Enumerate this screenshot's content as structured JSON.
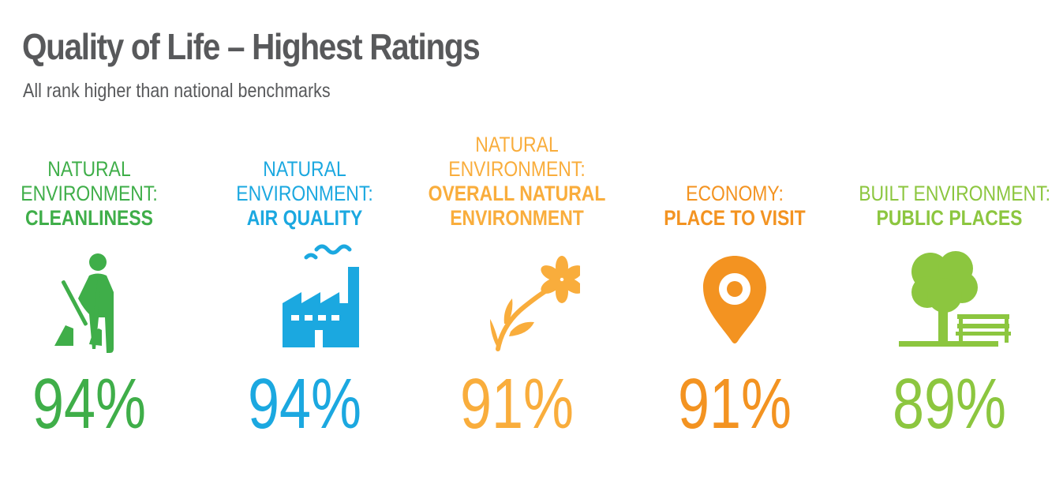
{
  "header": {
    "title": "Quality of Life – Highest Ratings",
    "subtitle": "All rank higher than national benchmarks"
  },
  "chart_data": {
    "type": "table",
    "title": "Quality of Life – Highest Ratings",
    "subtitle": "All rank higher than national benchmarks",
    "unit": "%",
    "items": [
      {
        "category_lines": [
          "NATURAL",
          "ENVIRONMENT:"
        ],
        "metric": "CLEANLINESS",
        "value": 94,
        "label": "94%",
        "color": "#3fae49",
        "icon": "sweeping-person-icon"
      },
      {
        "category_lines": [
          "NATURAL",
          "ENVIRONMENT:"
        ],
        "metric": "AIR QUALITY",
        "value": 94,
        "label": "94%",
        "color": "#1ba8e0",
        "icon": "factory-icon"
      },
      {
        "category_lines": [
          "NATURAL",
          "ENVIRONMENT:"
        ],
        "metric": "OVERALL NATURAL ENVIRONMENT",
        "metric_lines": [
          "OVERALL NATURAL",
          "ENVIRONMENT"
        ],
        "value": 91,
        "label": "91%",
        "color": "#f9ad3c",
        "icon": "flower-icon"
      },
      {
        "category_lines": [
          "ECONOMY:"
        ],
        "metric": "PLACE TO VISIT",
        "value": 91,
        "label": "91%",
        "color": "#f39321",
        "icon": "map-pin-icon"
      },
      {
        "category_lines": [
          "BUILT ENVIRONMENT:"
        ],
        "metric": "PUBLIC PLACES",
        "value": 89,
        "label": "89%",
        "color": "#8cc63f",
        "icon": "tree-bench-icon"
      }
    ]
  }
}
